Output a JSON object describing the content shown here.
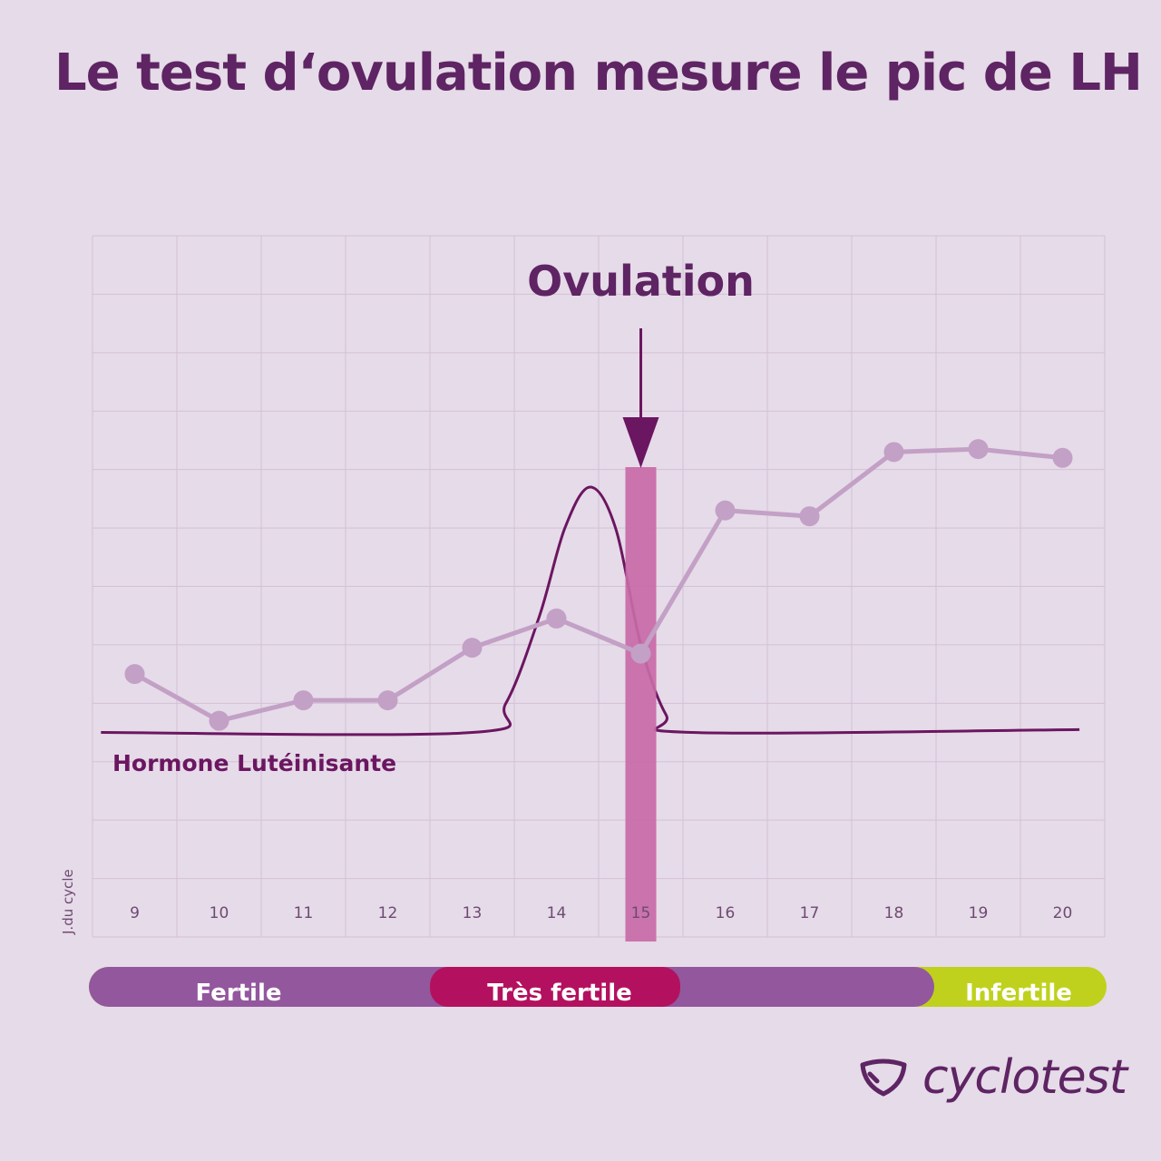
{
  "title": "Le test d‘ovulation mesure le pic de LH",
  "brand": {
    "name": "cyclotest",
    "logo_icon": "cyclotest-logo-icon"
  },
  "colors": {
    "background": "#e6dbe8",
    "title": "#5e2463",
    "grid": "#d3c1d6",
    "temperature_line": "#c3a0c6",
    "lh_curve": "#6b1661",
    "ovulation_bar": "#c86aa7",
    "arrow": "#6b1661",
    "fertile": "#93579e",
    "tres_fertile": "#b3115f",
    "infertile": "#bfd11d",
    "phase_text": "#ffffff"
  },
  "chart_data": {
    "type": "line",
    "x_axis_label": "J.du cycle",
    "x": [
      9,
      10,
      11,
      12,
      13,
      14,
      15,
      16,
      17,
      18,
      19,
      20
    ],
    "temperature_series": {
      "name": "",
      "values": [
        4.5,
        3.7,
        4.05,
        4.05,
        4.95,
        5.45,
        4.85,
        7.3,
        7.2,
        8.3,
        8.35,
        8.2
      ]
    },
    "lh_series": {
      "name": "Hormone Lutéinisante",
      "x": [
        8.6,
        13.0,
        13.4,
        13.8,
        14.1,
        14.4,
        14.7,
        15.0,
        15.3,
        15.6,
        20.2
      ],
      "values": [
        3.5,
        3.5,
        4.0,
        5.5,
        7.0,
        7.7,
        7.0,
        5.0,
        3.8,
        3.5,
        3.55
      ]
    },
    "ovulation": {
      "label": "Ovulation",
      "day": 15
    },
    "phases": [
      {
        "label": "Fertile",
        "from": 9,
        "to": 18.5
      },
      {
        "label": "Très fertile",
        "from": 13,
        "to": 15.5
      },
      {
        "label": "Infertile",
        "from": 18.5,
        "to": 20
      }
    ],
    "ylim": [
      0,
      12
    ],
    "y_grid_lines": 12,
    "grid": true
  }
}
